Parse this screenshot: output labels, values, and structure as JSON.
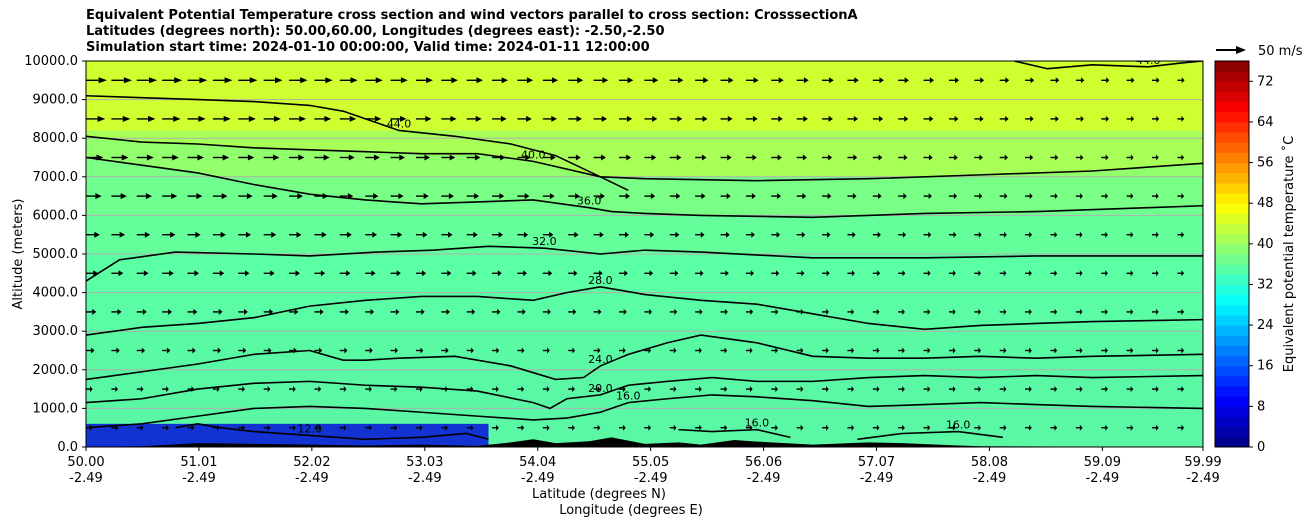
{
  "chart_data": {
    "type": "contourf",
    "title_lines": [
      "Equivalent Potential Temperature cross section and wind vectors parallel to cross section: CrosssectionA",
      "Latitudes (degrees north): 50.00,60.00, Longitudes (degrees east): -2.50,-2.50",
      "Simulation start time: 2024-01-10 00:00:00, Valid time: 2024-01-11 12:00:00"
    ],
    "x_ticks": [
      {
        "lat": "50.00",
        "lon": "-2.49",
        "value": 50.0
      },
      {
        "lat": "51.01",
        "lon": "-2.49",
        "value": 51.01
      },
      {
        "lat": "52.02",
        "lon": "-2.49",
        "value": 52.02
      },
      {
        "lat": "53.03",
        "lon": "-2.49",
        "value": 53.03
      },
      {
        "lat": "54.04",
        "lon": "-2.49",
        "value": 54.04
      },
      {
        "lat": "55.05",
        "lon": "-2.49",
        "value": 55.05
      },
      {
        "lat": "56.06",
        "lon": "-2.49",
        "value": 56.06
      },
      {
        "lat": "57.07",
        "lon": "-2.49",
        "value": 57.07
      },
      {
        "lat": "58.08",
        "lon": "-2.49",
        "value": 58.08
      },
      {
        "lat": "59.09",
        "lon": "-2.49",
        "value": 59.09
      },
      {
        "lat": "59.99",
        "lon": "-2.49",
        "value": 59.99
      }
    ],
    "xlim": [
      50.0,
      59.99
    ],
    "xlabel_1": "Latitude (degrees N)",
    "xlabel_2": "Longitude (degrees E)",
    "y_ticks": [
      "0.0",
      "1000.0",
      "2000.0",
      "3000.0",
      "4000.0",
      "5000.0",
      "6000.0",
      "7000.0",
      "8000.0",
      "9000.0",
      "10000.0"
    ],
    "ylim": [
      0,
      10000
    ],
    "ylabel": "Altitude (meters)",
    "grid": "horizontal",
    "colorbar": {
      "label": "Equivalent potential temperature ˚C",
      "ticks": [
        "0",
        "8",
        "16",
        "24",
        "32",
        "40",
        "48",
        "56",
        "64",
        "72"
      ],
      "range": [
        0,
        76
      ],
      "colormap": "jet",
      "levels": 38
    },
    "quiver_key": {
      "label": "50 m/s",
      "speed": 50
    },
    "contours": [
      {
        "label": "44.0",
        "points": [
          [
            50.0,
            9100
          ],
          [
            50.5,
            9050
          ],
          [
            51.0,
            9000
          ],
          [
            51.5,
            8950
          ],
          [
            52.0,
            8850
          ],
          [
            52.3,
            8700
          ],
          [
            52.8,
            8200
          ],
          [
            53.3,
            8050
          ],
          [
            53.8,
            7850
          ],
          [
            54.2,
            7550
          ],
          [
            54.6,
            7000
          ],
          [
            54.85,
            6650
          ]
        ]
      },
      {
        "label": "40.0",
        "points": [
          [
            50.0,
            8050
          ],
          [
            50.5,
            7900
          ],
          [
            51.0,
            7850
          ],
          [
            51.5,
            7750
          ],
          [
            52.0,
            7700
          ],
          [
            52.5,
            7650
          ],
          [
            53.0,
            7600
          ],
          [
            53.5,
            7600
          ],
          [
            54.0,
            7400
          ],
          [
            54.6,
            7000
          ],
          [
            55.0,
            6950
          ],
          [
            56.0,
            6900
          ],
          [
            57.0,
            6950
          ],
          [
            58.0,
            7050
          ],
          [
            59.0,
            7150
          ],
          [
            59.99,
            7350
          ]
        ]
      },
      {
        "label": "36.0",
        "points": [
          [
            50.0,
            7500
          ],
          [
            50.5,
            7300
          ],
          [
            51.0,
            7100
          ],
          [
            51.5,
            6800
          ],
          [
            52.0,
            6550
          ],
          [
            52.5,
            6400
          ],
          [
            53.0,
            6300
          ],
          [
            53.5,
            6350
          ],
          [
            54.0,
            6400
          ],
          [
            54.5,
            6200
          ],
          [
            54.7,
            6100
          ],
          [
            55.0,
            6050
          ],
          [
            55.5,
            6000
          ],
          [
            56.5,
            5950
          ],
          [
            57.5,
            6050
          ],
          [
            58.5,
            6100
          ],
          [
            59.5,
            6200
          ],
          [
            59.99,
            6250
          ]
        ]
      },
      {
        "label": "32.0",
        "points": [
          [
            50.0,
            4300
          ],
          [
            50.3,
            4850
          ],
          [
            50.8,
            5050
          ],
          [
            51.5,
            5000
          ],
          [
            52.0,
            4950
          ],
          [
            52.6,
            5050
          ],
          [
            53.1,
            5100
          ],
          [
            53.6,
            5200
          ],
          [
            54.1,
            5150
          ],
          [
            54.6,
            5000
          ],
          [
            55.0,
            5100
          ],
          [
            55.5,
            5050
          ],
          [
            56.5,
            4900
          ],
          [
            57.5,
            4900
          ],
          [
            58.5,
            4950
          ],
          [
            59.5,
            4950
          ],
          [
            59.99,
            4950
          ]
        ]
      },
      {
        "label": "28.0",
        "points": [
          [
            50.0,
            2900
          ],
          [
            50.5,
            3100
          ],
          [
            51.0,
            3200
          ],
          [
            51.5,
            3350
          ],
          [
            52.0,
            3650
          ],
          [
            52.5,
            3800
          ],
          [
            53.0,
            3900
          ],
          [
            53.5,
            3900
          ],
          [
            54.0,
            3800
          ],
          [
            54.3,
            4000
          ],
          [
            54.6,
            4150
          ],
          [
            55.0,
            3950
          ],
          [
            55.5,
            3800
          ],
          [
            56.0,
            3700
          ],
          [
            56.5,
            3450
          ],
          [
            57.0,
            3200
          ],
          [
            57.5,
            3050
          ],
          [
            58.0,
            3150
          ],
          [
            58.5,
            3200
          ],
          [
            59.0,
            3250
          ],
          [
            59.99,
            3300
          ]
        ]
      },
      {
        "label": "24.0",
        "points": [
          [
            50.0,
            1750
          ],
          [
            50.5,
            1950
          ],
          [
            51.0,
            2150
          ],
          [
            51.5,
            2400
          ],
          [
            52.0,
            2500
          ],
          [
            52.3,
            2250
          ],
          [
            52.5,
            2250
          ],
          [
            52.8,
            2300
          ],
          [
            53.3,
            2350
          ],
          [
            53.8,
            2100
          ],
          [
            54.2,
            1750
          ],
          [
            54.45,
            1800
          ],
          [
            54.6,
            2100
          ],
          [
            54.85,
            2400
          ],
          [
            55.2,
            2700
          ],
          [
            55.5,
            2900
          ],
          [
            56.0,
            2700
          ],
          [
            56.5,
            2350
          ],
          [
            57.0,
            2300
          ],
          [
            57.5,
            2300
          ],
          [
            58.0,
            2350
          ],
          [
            58.5,
            2300
          ],
          [
            59.0,
            2350
          ],
          [
            59.99,
            2400
          ]
        ]
      },
      {
        "label": "20.0",
        "points": [
          [
            50.0,
            1150
          ],
          [
            50.5,
            1250
          ],
          [
            51.0,
            1500
          ],
          [
            51.5,
            1650
          ],
          [
            52.0,
            1700
          ],
          [
            52.5,
            1600
          ],
          [
            53.0,
            1550
          ],
          [
            53.5,
            1450
          ],
          [
            54.0,
            1150
          ],
          [
            54.15,
            1000
          ],
          [
            54.3,
            1250
          ],
          [
            54.6,
            1350
          ],
          [
            54.85,
            1600
          ],
          [
            55.2,
            1700
          ],
          [
            55.6,
            1800
          ],
          [
            56.0,
            1700
          ],
          [
            56.5,
            1700
          ],
          [
            57.0,
            1800
          ],
          [
            57.5,
            1850
          ],
          [
            58.0,
            1800
          ],
          [
            58.5,
            1850
          ],
          [
            59.0,
            1800
          ],
          [
            59.99,
            1850
          ]
        ]
      },
      {
        "label": "16.0",
        "points": [
          [
            50.0,
            500
          ],
          [
            50.5,
            600
          ],
          [
            51.0,
            800
          ],
          [
            51.5,
            1000
          ],
          [
            52.0,
            1050
          ],
          [
            52.5,
            1000
          ],
          [
            53.0,
            900
          ],
          [
            53.5,
            800
          ],
          [
            54.0,
            700
          ],
          [
            54.3,
            750
          ],
          [
            54.6,
            900
          ],
          [
            54.85,
            1150
          ],
          [
            55.2,
            1250
          ],
          [
            55.6,
            1350
          ],
          [
            56.0,
            1300
          ],
          [
            56.5,
            1200
          ],
          [
            57.0,
            1050
          ],
          [
            57.5,
            1100
          ],
          [
            58.0,
            1150
          ],
          [
            58.5,
            1100
          ],
          [
            59.0,
            1050
          ],
          [
            59.99,
            1000
          ]
        ]
      },
      {
        "label": "12.0",
        "points": [
          [
            50.8,
            500
          ],
          [
            51.0,
            600
          ],
          [
            51.2,
            500
          ],
          [
            51.5,
            400
          ],
          [
            52.0,
            300
          ],
          [
            52.5,
            200
          ],
          [
            53.0,
            250
          ],
          [
            53.4,
            350
          ],
          [
            53.6,
            200
          ]
        ]
      },
      {
        "label": "16.0",
        "points": [
          [
            55.3,
            450
          ],
          [
            55.6,
            400
          ],
          [
            56.0,
            450
          ],
          [
            56.3,
            250
          ]
        ]
      },
      {
        "label": "16.0",
        "points": [
          [
            56.9,
            200
          ],
          [
            57.3,
            350
          ],
          [
            57.8,
            400
          ],
          [
            58.2,
            250
          ]
        ]
      },
      {
        "label": "44.0",
        "points": [
          [
            58.3,
            10000
          ],
          [
            58.6,
            9800
          ],
          [
            59.0,
            9900
          ],
          [
            59.5,
            9850
          ],
          [
            59.8,
            9950
          ],
          [
            59.99,
            10000
          ]
        ]
      }
    ],
    "terrain": [
      [
        50.0,
        0
      ],
      [
        50.5,
        20
      ],
      [
        51.0,
        100
      ],
      [
        51.5,
        80
      ],
      [
        52.0,
        60
      ],
      [
        52.5,
        40
      ],
      [
        53.0,
        60
      ],
      [
        53.5,
        30
      ],
      [
        53.8,
        120
      ],
      [
        54.0,
        200
      ],
      [
        54.2,
        100
      ],
      [
        54.5,
        150
      ],
      [
        54.7,
        250
      ],
      [
        55.0,
        80
      ],
      [
        55.3,
        120
      ],
      [
        55.5,
        60
      ],
      [
        55.8,
        180
      ],
      [
        56.0,
        140
      ],
      [
        56.5,
        60
      ],
      [
        57.0,
        120
      ],
      [
        57.3,
        100
      ],
      [
        57.8,
        40
      ],
      [
        58.0,
        20
      ],
      [
        59.99,
        0
      ]
    ]
  }
}
